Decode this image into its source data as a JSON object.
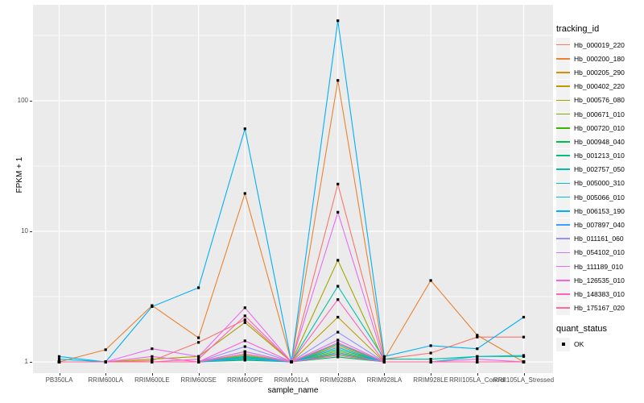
{
  "figure": {
    "background": "#FFFFFF",
    "panel_background": "#EBEBEB",
    "grid_color": "#FFFFFF",
    "axis_text_color": "#4D4D4D",
    "title_text_color": "#000000",
    "point_color": "#000000",
    "legend_key_background": "#F2F2F2"
  },
  "chart_data": {
    "type": "line",
    "title": "",
    "xlabel": "sample_name",
    "ylabel": "FPKM + 1",
    "y_scale": "log10",
    "grid": true,
    "legend_position": "right",
    "legend_title": "tracking_id",
    "y_ticks": [
      {
        "label": "1",
        "value": 1
      },
      {
        "label": "10",
        "value": 10
      },
      {
        "label": "100",
        "value": 100
      }
    ],
    "y_minor_ticks": [
      3.1623,
      31.623,
      316.23
    ],
    "ylim": [
      0.85,
      560
    ],
    "categories": [
      "PB350LA",
      "RRIM600LA",
      "RRIM600LE",
      "RRIM600SE",
      "RRIM600PE",
      "RRIM901LA",
      "RRIM928BA",
      "RRIM928LA",
      "RRIM928LE",
      "RRII105LA_Control",
      "RRII105LA_Stressed"
    ],
    "series": [
      {
        "name": "Hb_000019_220",
        "color": "#F8766D",
        "values": [
          1.0,
          1.0,
          1.02,
          1.41,
          2.1,
          1.0,
          23,
          1.05,
          1.17,
          1.55,
          1.55
        ]
      },
      {
        "name": "Hb_000200_180",
        "color": "#EA8331",
        "values": [
          1.0,
          1.24,
          2.7,
          1.53,
          19.5,
          1.0,
          143,
          1.05,
          4.2,
          1.6,
          1.0
        ]
      },
      {
        "name": "Hb_000205_290",
        "color": "#D89000",
        "values": [
          1.0,
          1.0,
          1.0,
          1.0,
          1.1,
          1.0,
          1.33,
          1.0,
          1.0,
          1.0,
          1.0
        ]
      },
      {
        "name": "Hb_000402_220",
        "color": "#C09B00",
        "values": [
          1.0,
          1.0,
          1.0,
          1.0,
          1.2,
          1.0,
          2.2,
          1.0,
          1.0,
          1.0,
          1.0
        ]
      },
      {
        "name": "Hb_000576_080",
        "color": "#A3A500",
        "values": [
          1.0,
          1.0,
          1.05,
          1.1,
          2.0,
          1.0,
          6.0,
          1.0,
          1.0,
          1.0,
          1.0
        ]
      },
      {
        "name": "Hb_000671_010",
        "color": "#7CAE00",
        "values": [
          1.0,
          1.0,
          1.0,
          1.0,
          1.12,
          1.0,
          1.21,
          1.0,
          1.0,
          1.0,
          1.0
        ]
      },
      {
        "name": "Hb_000720_010",
        "color": "#39B600",
        "values": [
          1.0,
          1.0,
          1.0,
          1.0,
          1.06,
          1.0,
          1.15,
          1.0,
          1.0,
          1.0,
          1.0
        ]
      },
      {
        "name": "Hb_000948_040",
        "color": "#00BB4E",
        "values": [
          1.0,
          1.0,
          1.0,
          1.0,
          1.03,
          1.0,
          1.09,
          1.0,
          1.0,
          1.0,
          1.0
        ]
      },
      {
        "name": "Hb_001213_010",
        "color": "#00BF7D",
        "values": [
          1.0,
          1.0,
          1.0,
          1.0,
          1.08,
          1.0,
          1.25,
          1.0,
          1.0,
          1.0,
          1.0
        ]
      },
      {
        "name": "Hb_002757_050",
        "color": "#00C1A3",
        "values": [
          1.0,
          1.0,
          1.0,
          1.0,
          1.15,
          1.0,
          3.8,
          1.05,
          1.05,
          1.1,
          1.1
        ]
      },
      {
        "name": "Hb_005000_310",
        "color": "#00BFC4",
        "values": [
          1.0,
          1.0,
          1.0,
          1.0,
          1.1,
          1.0,
          1.37,
          1.0,
          1.0,
          1.1,
          1.12
        ]
      },
      {
        "name": "Hb_005066_010",
        "color": "#00BAE0",
        "values": [
          1.05,
          1.0,
          1.0,
          1.0,
          1.08,
          1.0,
          1.29,
          1.0,
          1.0,
          1.0,
          1.0
        ]
      },
      {
        "name": "Hb_006153_190",
        "color": "#00B0F6",
        "values": [
          1.1,
          1.0,
          2.65,
          3.7,
          61,
          1.0,
          410,
          1.1,
          1.33,
          1.26,
          2.2
        ]
      },
      {
        "name": "Hb_007897_040",
        "color": "#35A2FF",
        "values": [
          1.0,
          1.0,
          1.0,
          1.0,
          1.05,
          1.0,
          1.18,
          1.0,
          1.0,
          1.0,
          1.0
        ]
      },
      {
        "name": "Hb_011161_060",
        "color": "#9590FF",
        "values": [
          1.0,
          1.0,
          1.0,
          1.0,
          1.31,
          1.0,
          1.69,
          1.0,
          1.0,
          1.0,
          1.0
        ]
      },
      {
        "name": "Hb_054102_010",
        "color": "#C77CFF",
        "values": [
          1.0,
          1.0,
          1.0,
          1.0,
          1.2,
          1.0,
          1.47,
          1.0,
          1.0,
          1.0,
          1.0
        ]
      },
      {
        "name": "Hb_111189_010",
        "color": "#E76BF3",
        "values": [
          1.0,
          1.0,
          1.26,
          1.1,
          2.6,
          1.0,
          14,
          1.0,
          1.0,
          1.05,
          1.0
        ]
      },
      {
        "name": "Hb_126535_010",
        "color": "#FA62DB",
        "values": [
          1.0,
          1.0,
          1.1,
          1.0,
          1.45,
          1.0,
          1.12,
          1.0,
          1.0,
          1.0,
          1.0
        ]
      },
      {
        "name": "Hb_148383_010",
        "color": "#FF62BC",
        "values": [
          1.0,
          1.0,
          1.0,
          1.05,
          2.25,
          1.0,
          3.0,
          1.0,
          1.0,
          1.0,
          1.0
        ]
      },
      {
        "name": "Hb_175167_020",
        "color": "#FF6A98",
        "values": [
          1.0,
          1.0,
          1.0,
          1.0,
          1.15,
          1.0,
          1.4,
          1.0,
          1.0,
          1.0,
          1.0
        ]
      }
    ],
    "quant_legend": {
      "title": "quant_status",
      "items": [
        {
          "label": "OK",
          "marker": "black-square"
        }
      ]
    }
  }
}
